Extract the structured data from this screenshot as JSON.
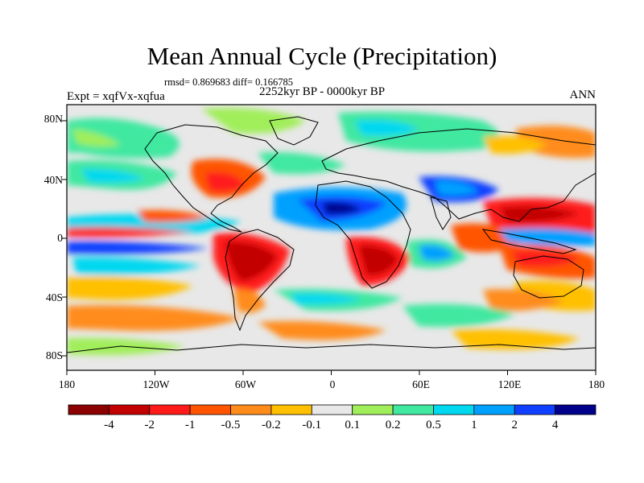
{
  "title": "Mean Annual Cycle (Precipitation)",
  "stats": "rmsd= 0.869683 diff= 0.166785",
  "experiment": "Expt = xqfVx-xqfua",
  "period": "2252kyr BP - 0000kyr BP",
  "season": "ANN",
  "axes": {
    "x_ticks": [
      "180",
      "120W",
      "60W",
      "0",
      "60E",
      "120E",
      "180"
    ],
    "y_ticks": [
      "80N",
      "40N",
      "0",
      "40S",
      "80S"
    ]
  },
  "colorbar": {
    "labels": [
      "-4",
      "-2",
      "-1",
      "-0.5",
      "-0.2",
      "-0.1",
      "0.1",
      "0.2",
      "0.5",
      "1",
      "2",
      "4"
    ],
    "colors": [
      "#8b0000",
      "#c20000",
      "#ff1a1a",
      "#ff5500",
      "#ff8c1a",
      "#ffc000",
      "#e8e8e8",
      "#a0ee5a",
      "#40e8a0",
      "#00d8f0",
      "#00a0ff",
      "#1040ff",
      "#00008b"
    ]
  },
  "map": {
    "background_color": "#e8e8e8",
    "coastline_color": "#000000"
  }
}
